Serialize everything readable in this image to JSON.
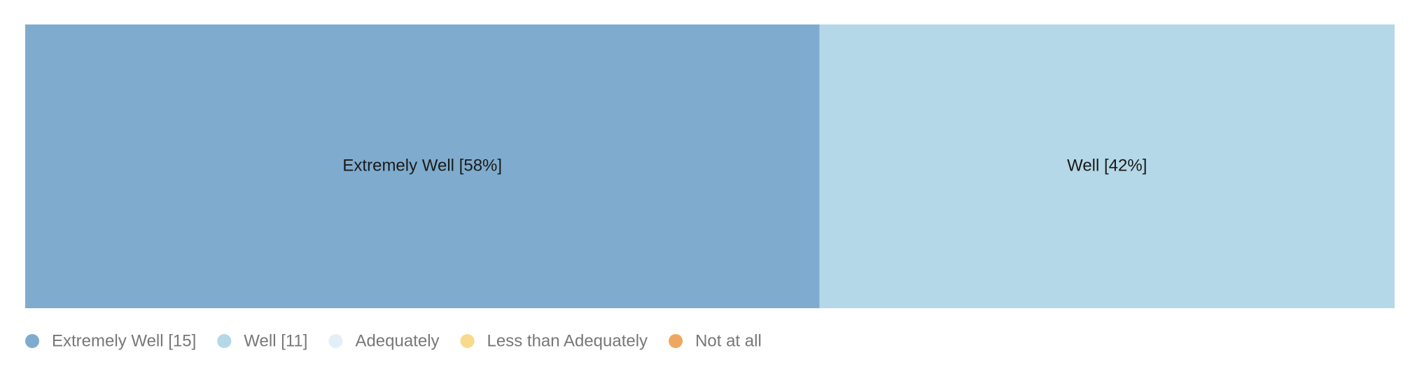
{
  "chart_data": {
    "type": "stacked-bar-100",
    "series": [
      {
        "name": "Extremely Well [15]",
        "color": "#7facce",
        "values": [
          58
        ],
        "value_labels": [
          "Extremely Well [58%]"
        ]
      },
      {
        "name": "Well [11]",
        "color": "#b4d8e7",
        "values": [
          42
        ],
        "value_labels": [
          "Well [42%]"
        ]
      },
      {
        "name": "Adequately",
        "color": "#e3eff7",
        "values": [
          0
        ]
      },
      {
        "name": "Less than Adequately",
        "color": "#f8da8c",
        "values": [
          0
        ]
      },
      {
        "name": "Not at all",
        "color": "#eea760",
        "values": [
          0
        ]
      }
    ],
    "legend": "bottom-left"
  }
}
